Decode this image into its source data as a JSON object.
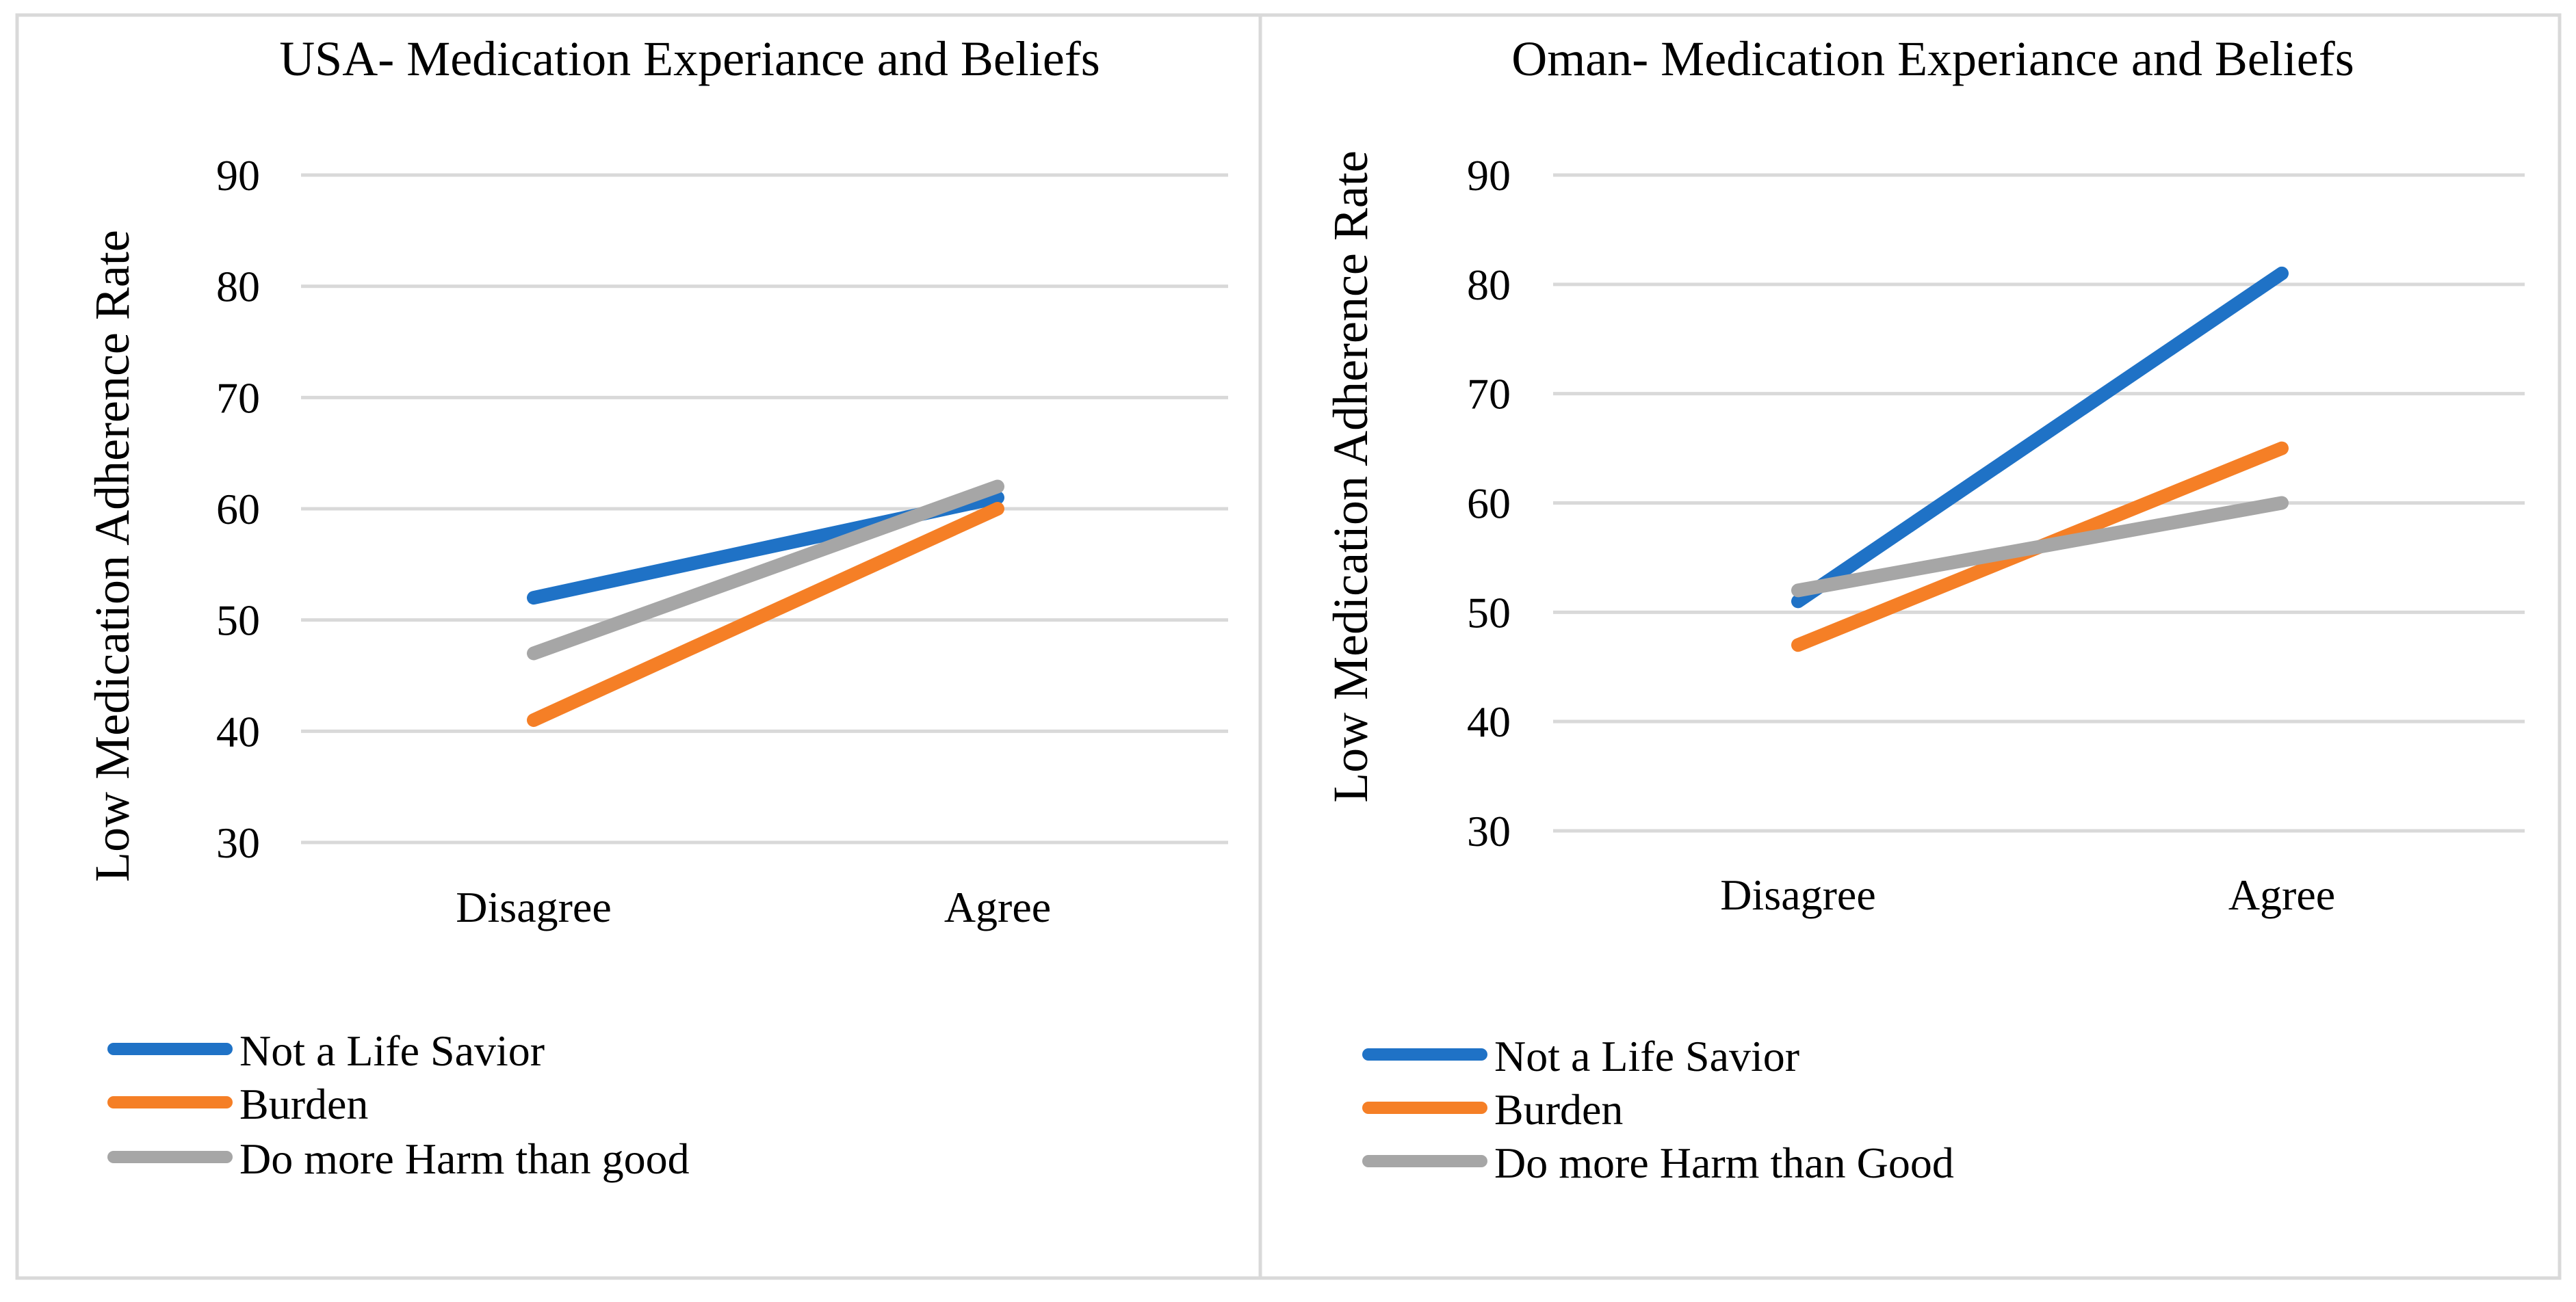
{
  "chart_data": [
    {
      "type": "line",
      "title": "USA- Medication Experiance and Beliefs",
      "xlabel": "",
      "ylabel": "Low  Medication Adherence Rate",
      "categories": [
        "Disagree",
        "Agree"
      ],
      "yticks": [
        "30",
        "40",
        "50",
        "60",
        "70",
        "80",
        "90"
      ],
      "ylim": [
        30,
        90
      ],
      "grid": true,
      "legend_position": "bottom-left",
      "series": [
        {
          "name": "Not a Life Savior",
          "color": "#1F72C6",
          "values": [
            52,
            61
          ]
        },
        {
          "name": "Burden",
          "color": "#F57F26",
          "values": [
            41,
            60
          ]
        },
        {
          "name": "Do more Harm than good",
          "color": "#A6A6A6",
          "values": [
            47,
            62
          ]
        }
      ]
    },
    {
      "type": "line",
      "title": "Oman- Medication Experiance and Beliefs",
      "xlabel": "",
      "ylabel": "Low Medication Adherence Rate",
      "categories": [
        "Disagree",
        "Agree"
      ],
      "yticks": [
        "30",
        "40",
        "50",
        "60",
        "70",
        "80",
        "90"
      ],
      "ylim": [
        30,
        90
      ],
      "grid": true,
      "legend_position": "bottom-left",
      "series": [
        {
          "name": "Not a Life Savior",
          "color": "#1F72C6",
          "values": [
            51,
            81
          ]
        },
        {
          "name": "Burden",
          "color": "#F57F26",
          "values": [
            47,
            65
          ]
        },
        {
          "name": "Do more Harm than Good",
          "color": "#A6A6A6",
          "values": [
            52,
            60
          ]
        }
      ]
    }
  ],
  "colors": {
    "gridline": "#D9D9D9",
    "frame": "#D9D9D9"
  }
}
